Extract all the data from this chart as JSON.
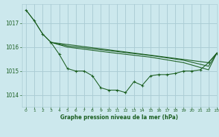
{
  "title": "Graphe pression niveau de la mer (hPa)",
  "background_color": "#cce8ed",
  "grid_color": "#aaccd4",
  "line_color": "#1a5e20",
  "xlim": [
    -0.5,
    23
  ],
  "ylim": [
    1013.5,
    1017.8
  ],
  "yticks": [
    1014,
    1015,
    1016,
    1017
  ],
  "xticks": [
    0,
    1,
    2,
    3,
    4,
    5,
    6,
    7,
    8,
    9,
    10,
    11,
    12,
    13,
    14,
    15,
    16,
    17,
    18,
    19,
    20,
    21,
    22,
    23
  ],
  "series1_x": [
    0,
    1,
    2,
    3,
    4,
    5,
    6,
    7,
    8,
    9,
    10,
    11,
    12,
    13,
    14,
    15,
    16,
    17,
    18,
    19,
    20,
    21,
    22,
    23
  ],
  "series1_y": [
    1017.55,
    1017.1,
    1016.55,
    1016.2,
    1015.7,
    1015.1,
    1015.0,
    1015.0,
    1014.8,
    1014.3,
    1014.2,
    1014.2,
    1014.1,
    1014.55,
    1014.4,
    1014.8,
    1014.85,
    1014.85,
    1014.9,
    1015.0,
    1015.0,
    1015.05,
    1015.35,
    1015.75
  ],
  "series2_x": [
    0,
    1,
    2,
    3,
    22,
    23
  ],
  "series2_y": [
    1017.55,
    1017.1,
    1016.55,
    1016.2,
    1015.35,
    1015.75
  ],
  "series3_x": [
    3,
    5,
    10,
    15,
    19,
    22,
    23
  ],
  "series3_y": [
    1016.2,
    1016.05,
    1015.85,
    1015.65,
    1015.45,
    1015.2,
    1015.75
  ],
  "series4_x": [
    3,
    5,
    10,
    15,
    19,
    22,
    23
  ],
  "series4_y": [
    1016.2,
    1016.0,
    1015.78,
    1015.58,
    1015.35,
    1015.05,
    1015.75
  ]
}
